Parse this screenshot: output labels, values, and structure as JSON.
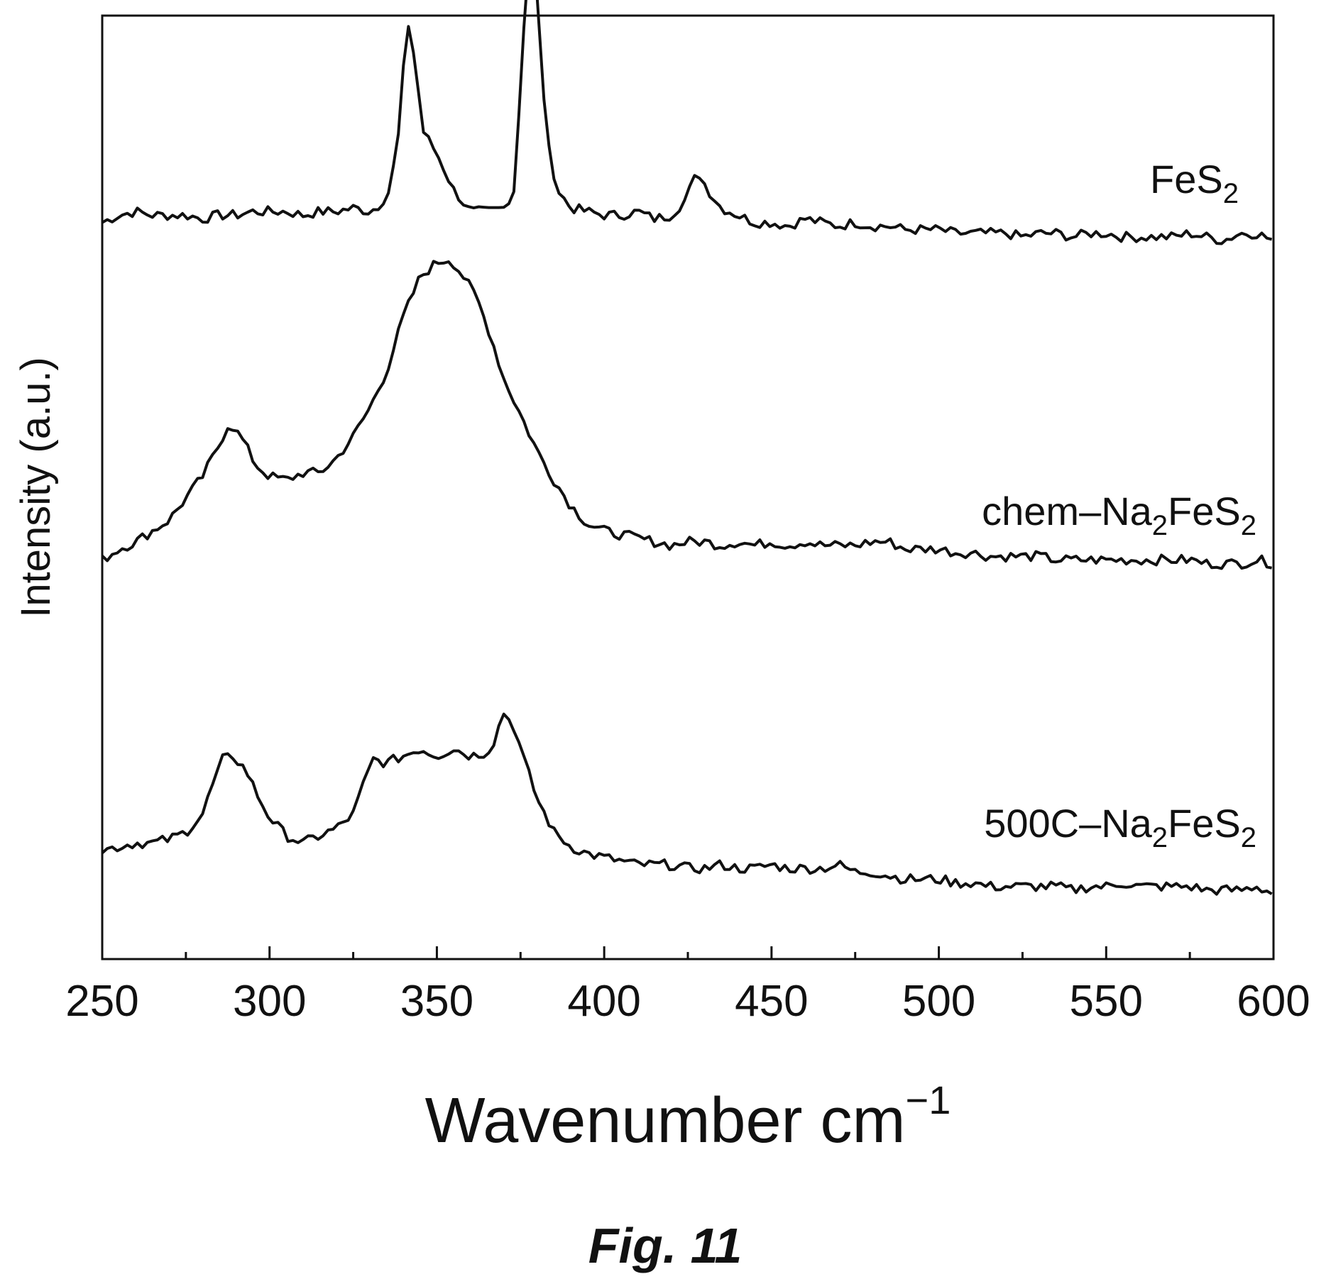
{
  "chart_data": {
    "type": "line",
    "xlabel": "Wavenumber cm",
    "xlabel_sup": "−1",
    "ylabel": "Intensity (a.u.)",
    "xlim": [
      250,
      600
    ],
    "ylim": [
      0,
      2.6
    ],
    "x_ticks": [
      "250",
      "300",
      "350",
      "400",
      "450",
      "500",
      "550",
      "600"
    ],
    "y_ticks": [],
    "grid": false,
    "caption": "Fig. 11",
    "series": [
      {
        "name": "FeS2",
        "label_main": "FeS",
        "label_sub": "2",
        "label_tail": "",
        "points": [
          [
            250,
            2.03
          ],
          [
            255,
            2.05
          ],
          [
            260,
            2.06
          ],
          [
            265,
            2.05
          ],
          [
            270,
            2.05
          ],
          [
            275,
            2.05
          ],
          [
            280,
            2.04
          ],
          [
            285,
            2.05
          ],
          [
            290,
            2.05
          ],
          [
            295,
            2.06
          ],
          [
            300,
            2.06
          ],
          [
            305,
            2.06
          ],
          [
            310,
            2.05
          ],
          [
            315,
            2.06
          ],
          [
            320,
            2.06
          ],
          [
            325,
            2.07
          ],
          [
            330,
            2.06
          ],
          [
            333,
            2.08
          ],
          [
            336,
            2.12
          ],
          [
            339,
            2.3
          ],
          [
            341,
            2.6
          ],
          [
            343,
            2.5
          ],
          [
            346,
            2.28
          ],
          [
            350,
            2.22
          ],
          [
            355,
            2.12
          ],
          [
            360,
            2.06
          ],
          [
            365,
            2.06
          ],
          [
            370,
            2.07
          ],
          [
            373,
            2.12
          ],
          [
            375,
            2.4
          ],
          [
            377,
            2.75
          ],
          [
            379,
            2.78
          ],
          [
            381,
            2.5
          ],
          [
            383,
            2.25
          ],
          [
            386,
            2.12
          ],
          [
            390,
            2.07
          ],
          [
            395,
            2.06
          ],
          [
            400,
            2.05
          ],
          [
            405,
            2.05
          ],
          [
            410,
            2.06
          ],
          [
            415,
            2.04
          ],
          [
            420,
            2.05
          ],
          [
            424,
            2.09
          ],
          [
            428,
            2.17
          ],
          [
            431,
            2.12
          ],
          [
            435,
            2.07
          ],
          [
            440,
            2.05
          ],
          [
            445,
            2.03
          ],
          [
            450,
            2.03
          ],
          [
            455,
            2.02
          ],
          [
            460,
            2.04
          ],
          [
            465,
            2.03
          ],
          [
            470,
            2.02
          ],
          [
            475,
            2.03
          ],
          [
            480,
            2.02
          ],
          [
            485,
            2.02
          ],
          [
            490,
            2.01
          ],
          [
            495,
            2.01
          ],
          [
            500,
            2.01
          ],
          [
            505,
            2.0
          ],
          [
            510,
            2.0
          ],
          [
            515,
            2.0
          ],
          [
            520,
            2.0
          ],
          [
            525,
            1.99
          ],
          [
            530,
            2.0
          ],
          [
            535,
            2.0
          ],
          [
            540,
            1.99
          ],
          [
            545,
            2.0
          ],
          [
            550,
            2.0
          ],
          [
            555,
            1.99
          ],
          [
            560,
            1.99
          ],
          [
            565,
            1.99
          ],
          [
            570,
            1.99
          ],
          [
            575,
            2.0
          ],
          [
            580,
            1.99
          ],
          [
            585,
            1.98
          ],
          [
            590,
            2.0
          ],
          [
            595,
            2.0
          ],
          [
            600,
            1.98
          ]
        ]
      },
      {
        "name": "chem–Na2FeS2",
        "label_main": "chem–Na",
        "label_sub": "2",
        "label_tail": "FeS",
        "label_sub2": "2",
        "points": [
          [
            250,
            1.1
          ],
          [
            255,
            1.13
          ],
          [
            260,
            1.15
          ],
          [
            265,
            1.18
          ],
          [
            270,
            1.21
          ],
          [
            275,
            1.27
          ],
          [
            280,
            1.33
          ],
          [
            284,
            1.4
          ],
          [
            288,
            1.48
          ],
          [
            292,
            1.43
          ],
          [
            296,
            1.36
          ],
          [
            300,
            1.33
          ],
          [
            305,
            1.32
          ],
          [
            310,
            1.34
          ],
          [
            315,
            1.34
          ],
          [
            320,
            1.38
          ],
          [
            325,
            1.44
          ],
          [
            330,
            1.52
          ],
          [
            335,
            1.62
          ],
          [
            340,
            1.77
          ],
          [
            345,
            1.88
          ],
          [
            350,
            1.92
          ],
          [
            354,
            1.93
          ],
          [
            358,
            1.88
          ],
          [
            362,
            1.82
          ],
          [
            366,
            1.72
          ],
          [
            370,
            1.6
          ],
          [
            375,
            1.5
          ],
          [
            380,
            1.4
          ],
          [
            385,
            1.32
          ],
          [
            390,
            1.25
          ],
          [
            395,
            1.2
          ],
          [
            400,
            1.18
          ],
          [
            405,
            1.17
          ],
          [
            410,
            1.16
          ],
          [
            415,
            1.15
          ],
          [
            420,
            1.14
          ],
          [
            425,
            1.15
          ],
          [
            430,
            1.15
          ],
          [
            435,
            1.14
          ],
          [
            440,
            1.15
          ],
          [
            445,
            1.14
          ],
          [
            450,
            1.15
          ],
          [
            455,
            1.14
          ],
          [
            460,
            1.15
          ],
          [
            465,
            1.14
          ],
          [
            470,
            1.14
          ],
          [
            475,
            1.14
          ],
          [
            480,
            1.15
          ],
          [
            485,
            1.15
          ],
          [
            490,
            1.13
          ],
          [
            495,
            1.13
          ],
          [
            500,
            1.13
          ],
          [
            505,
            1.12
          ],
          [
            510,
            1.12
          ],
          [
            515,
            1.11
          ],
          [
            520,
            1.11
          ],
          [
            525,
            1.11
          ],
          [
            530,
            1.11
          ],
          [
            535,
            1.1
          ],
          [
            540,
            1.1
          ],
          [
            545,
            1.1
          ],
          [
            550,
            1.1
          ],
          [
            555,
            1.1
          ],
          [
            560,
            1.1
          ],
          [
            565,
            1.1
          ],
          [
            570,
            1.1
          ],
          [
            575,
            1.1
          ],
          [
            580,
            1.09
          ],
          [
            585,
            1.09
          ],
          [
            590,
            1.09
          ],
          [
            595,
            1.1
          ],
          [
            600,
            1.09
          ]
        ]
      },
      {
        "name": "500C–Na2FeS2",
        "label_main": "500C–Na",
        "label_sub": "2",
        "label_tail": "FeS",
        "label_sub2": "2",
        "points": [
          [
            250,
            0.3
          ],
          [
            255,
            0.31
          ],
          [
            260,
            0.32
          ],
          [
            265,
            0.32
          ],
          [
            270,
            0.33
          ],
          [
            275,
            0.35
          ],
          [
            280,
            0.4
          ],
          [
            283,
            0.48
          ],
          [
            286,
            0.55
          ],
          [
            289,
            0.56
          ],
          [
            293,
            0.52
          ],
          [
            297,
            0.44
          ],
          [
            300,
            0.39
          ],
          [
            305,
            0.34
          ],
          [
            310,
            0.32
          ],
          [
            315,
            0.34
          ],
          [
            320,
            0.36
          ],
          [
            325,
            0.4
          ],
          [
            328,
            0.48
          ],
          [
            331,
            0.55
          ],
          [
            335,
            0.54
          ],
          [
            340,
            0.56
          ],
          [
            345,
            0.58
          ],
          [
            350,
            0.56
          ],
          [
            355,
            0.58
          ],
          [
            360,
            0.56
          ],
          [
            365,
            0.57
          ],
          [
            367,
            0.6
          ],
          [
            370,
            0.68
          ],
          [
            373,
            0.64
          ],
          [
            376,
            0.55
          ],
          [
            380,
            0.44
          ],
          [
            385,
            0.35
          ],
          [
            390,
            0.31
          ],
          [
            395,
            0.29
          ],
          [
            400,
            0.28
          ],
          [
            405,
            0.27
          ],
          [
            410,
            0.26
          ],
          [
            415,
            0.26
          ],
          [
            420,
            0.26
          ],
          [
            425,
            0.25
          ],
          [
            430,
            0.25
          ],
          [
            435,
            0.26
          ],
          [
            440,
            0.25
          ],
          [
            445,
            0.25
          ],
          [
            450,
            0.26
          ],
          [
            455,
            0.25
          ],
          [
            460,
            0.25
          ],
          [
            465,
            0.25
          ],
          [
            470,
            0.26
          ],
          [
            475,
            0.24
          ],
          [
            480,
            0.24
          ],
          [
            485,
            0.23
          ],
          [
            490,
            0.22
          ],
          [
            495,
            0.22
          ],
          [
            500,
            0.22
          ],
          [
            505,
            0.21
          ],
          [
            510,
            0.21
          ],
          [
            515,
            0.2
          ],
          [
            520,
            0.2
          ],
          [
            525,
            0.2
          ],
          [
            530,
            0.2
          ],
          [
            535,
            0.2
          ],
          [
            540,
            0.19
          ],
          [
            545,
            0.2
          ],
          [
            550,
            0.2
          ],
          [
            555,
            0.21
          ],
          [
            560,
            0.2
          ],
          [
            565,
            0.2
          ],
          [
            570,
            0.2
          ],
          [
            575,
            0.2
          ],
          [
            580,
            0.19
          ],
          [
            585,
            0.19
          ],
          [
            590,
            0.19
          ],
          [
            595,
            0.2
          ],
          [
            600,
            0.18
          ]
        ]
      }
    ]
  }
}
